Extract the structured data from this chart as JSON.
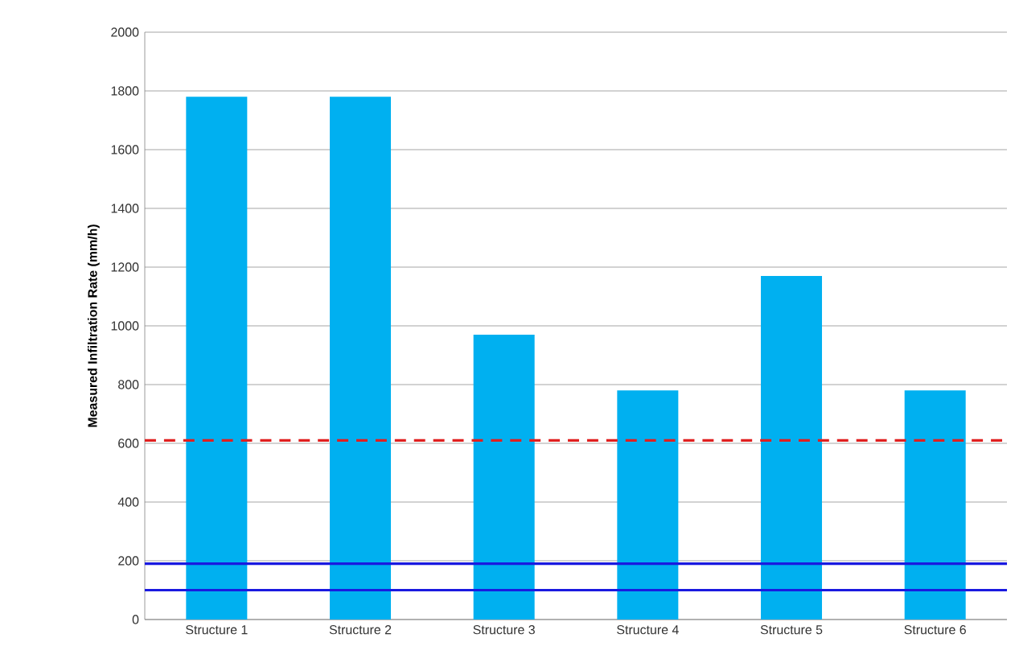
{
  "chart_data": {
    "type": "bar",
    "ylabel": "Measured Infiltration Rate (mm/h)",
    "categories": [
      "Structure 1",
      "Structure 2",
      "Structure 3",
      "Structure 4",
      "Structure 5",
      "Structure 6"
    ],
    "values": [
      1780,
      1780,
      970,
      780,
      1170,
      780
    ],
    "color": "#00b0f0",
    "ylim": [
      0,
      2000
    ],
    "yticks": [
      0,
      200,
      400,
      600,
      800,
      1000,
      1200,
      1400,
      1600,
      1800,
      2000
    ],
    "grid": "y",
    "ref_lines": [
      {
        "axis": "y",
        "value": 610,
        "color": "#e02020",
        "line_style": "dashed"
      },
      {
        "axis": "y",
        "value": 190,
        "color": "#1a1ae0",
        "line_style": "solid"
      },
      {
        "axis": "y",
        "value": 100,
        "color": "#1a1ae0",
        "line_style": "solid"
      }
    ]
  }
}
